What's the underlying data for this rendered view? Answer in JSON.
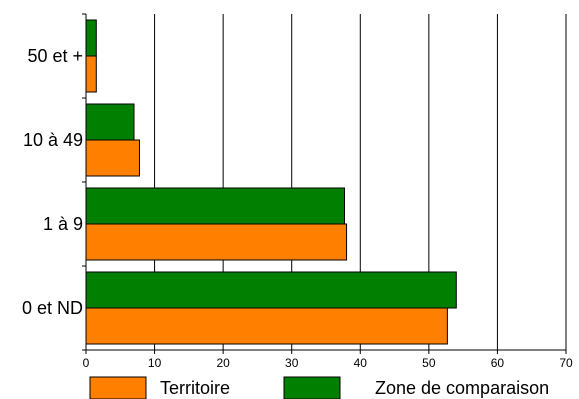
{
  "chart_data": {
    "type": "bar",
    "orientation": "horizontal",
    "categories": [
      "50 et +",
      "10 à 49",
      "1 à 9",
      "0 et ND"
    ],
    "series": [
      {
        "name": "Territoire",
        "color": "#FF7F00",
        "values": [
          1.5,
          7.8,
          38,
          52.7
        ]
      },
      {
        "name": "Zone de comparaison",
        "color": "#007F00",
        "values": [
          1.5,
          7,
          37.7,
          54
        ]
      }
    ],
    "xlim": [
      0,
      70
    ],
    "xticks": [
      0,
      10,
      20,
      30,
      40,
      50,
      60,
      70
    ],
    "grid": true,
    "legend_position": "bottom"
  }
}
